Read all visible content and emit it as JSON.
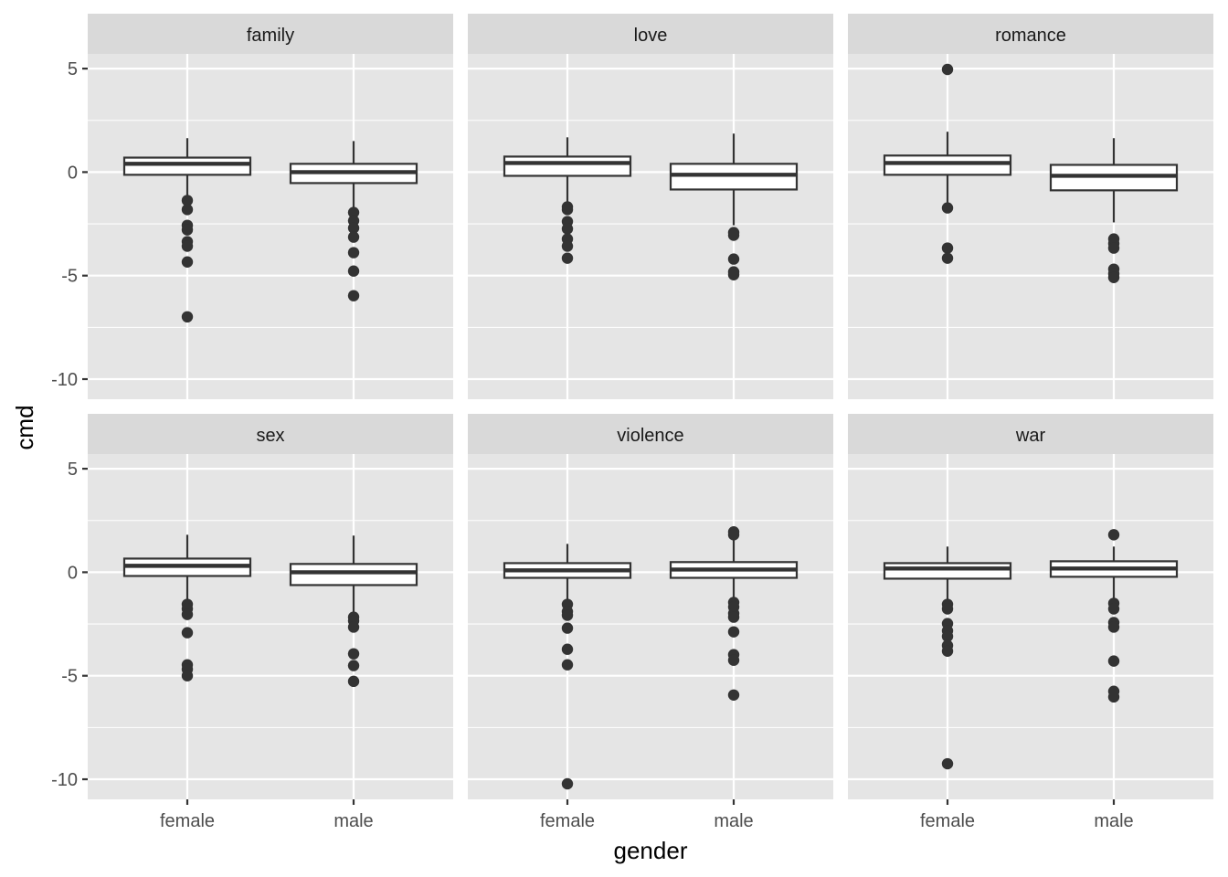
{
  "chart_data": {
    "type": "boxplot",
    "title": "",
    "xlabel": "gender",
    "ylabel": "cmd",
    "ylim": [
      -10.97,
      5.71
    ],
    "yticks": [
      5,
      0,
      -5,
      -10
    ],
    "ytick_labels": [
      "5",
      "0",
      "-5",
      "-10"
    ],
    "categories": [
      "female",
      "male"
    ],
    "grid": true,
    "facet_layout": "2 rows x 3 columns",
    "panels": [
      {
        "facet": "family",
        "boxes": [
          {
            "category": "female",
            "whisker_low": -1.24,
            "q1": -0.13,
            "median": 0.4,
            "q3": 0.7,
            "whisker_high": 1.64,
            "outliers": [
              -1.37,
              -1.81,
              -2.57,
              -2.79,
              -3.36,
              -3.58,
              -4.34,
              -6.99
            ]
          },
          {
            "category": "male",
            "whisker_low": -1.75,
            "q1": -0.53,
            "median": 0.0,
            "q3": 0.4,
            "whisker_high": 1.5,
            "outliers": [
              -1.95,
              -2.35,
              -2.7,
              -3.14,
              -3.89,
              -4.78,
              -5.97
            ]
          }
        ]
      },
      {
        "facet": "love",
        "boxes": [
          {
            "category": "female",
            "whisker_low": -1.5,
            "q1": -0.18,
            "median": 0.44,
            "q3": 0.75,
            "whisker_high": 1.68,
            "outliers": [
              -1.68,
              -1.81,
              -2.39,
              -2.74,
              -3.23,
              -3.58,
              -4.16
            ]
          },
          {
            "category": "male",
            "whisker_low": -2.57,
            "q1": -0.84,
            "median": -0.13,
            "q3": 0.4,
            "whisker_high": 1.86,
            "outliers": [
              -2.92,
              -3.05,
              -4.2,
              -4.82,
              -4.96
            ]
          }
        ]
      },
      {
        "facet": "romance",
        "boxes": [
          {
            "category": "female",
            "whisker_low": -1.46,
            "q1": -0.13,
            "median": 0.44,
            "q3": 0.8,
            "whisker_high": 1.95,
            "outliers": [
              4.96,
              -1.73,
              -3.67,
              -4.16
            ]
          },
          {
            "category": "male",
            "whisker_low": -2.43,
            "q1": -0.88,
            "median": -0.18,
            "q3": 0.35,
            "whisker_high": 1.64,
            "outliers": [
              -3.23,
              -3.45,
              -3.67,
              -4.69,
              -4.91,
              -5.09
            ]
          }
        ]
      },
      {
        "facet": "sex",
        "boxes": [
          {
            "category": "female",
            "whisker_low": -1.4,
            "q1": -0.18,
            "median": 0.31,
            "q3": 0.66,
            "whisker_high": 1.81,
            "outliers": [
              -1.55,
              -1.77,
              -2.04,
              -2.92,
              -4.47,
              -4.69,
              -5.0
            ]
          },
          {
            "category": "male",
            "whisker_low": -2.0,
            "q1": -0.62,
            "median": 0.0,
            "q3": 0.4,
            "whisker_high": 1.77,
            "outliers": [
              -2.17,
              -2.35,
              -2.65,
              -3.94,
              -4.51,
              -5.27
            ]
          }
        ]
      },
      {
        "facet": "violence",
        "boxes": [
          {
            "category": "female",
            "whisker_low": -1.4,
            "q1": -0.27,
            "median": 0.09,
            "q3": 0.44,
            "whisker_high": 1.37,
            "outliers": [
              -1.55,
              -1.9,
              -2.08,
              -2.7,
              -3.72,
              -4.47,
              -10.22
            ]
          },
          {
            "category": "male",
            "whisker_low": -1.35,
            "q1": -0.27,
            "median": 0.13,
            "q3": 0.49,
            "whisker_high": 1.6,
            "outliers": [
              1.95,
              1.81,
              -1.46,
              -1.68,
              -1.99,
              -2.17,
              -2.88,
              -3.98,
              -4.25,
              -5.93
            ]
          }
        ]
      },
      {
        "facet": "war",
        "boxes": [
          {
            "category": "female",
            "whisker_low": -1.4,
            "q1": -0.31,
            "median": 0.18,
            "q3": 0.44,
            "whisker_high": 1.24,
            "outliers": [
              -1.55,
              -1.77,
              -2.48,
              -2.83,
              -3.1,
              -3.54,
              -3.81,
              -9.25
            ]
          },
          {
            "category": "male",
            "whisker_low": -1.35,
            "q1": -0.22,
            "median": 0.18,
            "q3": 0.53,
            "whisker_high": 1.24,
            "outliers": [
              1.81,
              -1.5,
              -1.77,
              -2.43,
              -2.65,
              -4.29,
              -5.75,
              -6.02
            ]
          }
        ]
      }
    ]
  },
  "colors": {
    "panel_background": "#e5e5e5",
    "strip_background": "#d9d9d9",
    "grid": "#ffffff",
    "box_fill": "#ffffff",
    "box_line": "#333333",
    "outlier": "#333333",
    "tick_text": "#4d4d4d"
  }
}
